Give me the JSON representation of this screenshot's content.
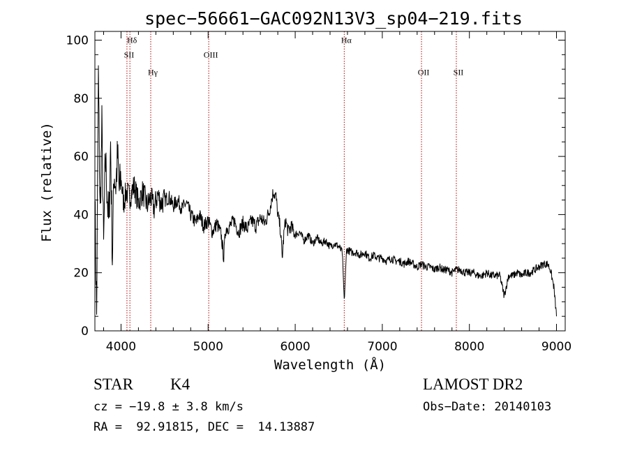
{
  "chart_data": {
    "type": "line",
    "title": "spec−56661−GAC092N13V3_sp04−219.fits",
    "xlabel": "Wavelength (Å)",
    "ylabel": "Flux (relative)",
    "xlim": [
      3700,
      9100
    ],
    "ylim": [
      0,
      103
    ],
    "xticks": [
      4000,
      5000,
      6000,
      7000,
      8000,
      9000
    ],
    "yticks": [
      0,
      20,
      40,
      60,
      80,
      100
    ],
    "series": [
      {
        "x": [
          3700,
          3720,
          3740,
          3760,
          3780,
          3800,
          3820,
          3840,
          3860,
          3880,
          3900,
          3920,
          3940,
          3960,
          3980,
          4000,
          4030,
          4060,
          4100,
          4150,
          4200,
          4250,
          4300,
          4340,
          4380,
          4420,
          4460,
          4500,
          4550,
          4600,
          4650,
          4700,
          4750,
          4800,
          4860,
          4900,
          4950,
          5000,
          5050,
          5100,
          5150,
          5180,
          5200,
          5250,
          5300,
          5350,
          5400,
          5450,
          5500,
          5550,
          5600,
          5650,
          5700,
          5750,
          5780,
          5800,
          5830,
          5850,
          5870,
          5890,
          5920,
          5950,
          6000,
          6050,
          6100,
          6150,
          6200,
          6250,
          6300,
          6350,
          6400,
          6450,
          6500,
          6540,
          6563,
          6590,
          6650,
          6700,
          6750,
          6800,
          6850,
          6900,
          6950,
          7000,
          7050,
          7100,
          7150,
          7200,
          7250,
          7300,
          7350,
          7400,
          7450,
          7500,
          7550,
          7600,
          7650,
          7700,
          7750,
          7800,
          7850,
          7900,
          7950,
          8000,
          8050,
          8100,
          8150,
          8200,
          8250,
          8300,
          8350,
          8400,
          8450,
          8500,
          8550,
          8600,
          8650,
          8700,
          8750,
          8800,
          8850,
          8900,
          8930,
          8950,
          8970,
          9000
        ],
        "y": [
          45,
          5,
          88,
          40,
          70,
          28,
          60,
          48,
          35,
          65,
          25,
          55,
          50,
          60,
          48,
          52,
          44,
          48,
          46,
          50,
          44,
          48,
          43,
          46,
          42,
          47,
          44,
          45,
          46,
          43,
          45,
          42,
          44,
          40,
          37,
          40,
          36,
          38,
          34,
          37,
          33,
          25,
          35,
          36,
          38,
          34,
          37,
          35,
          38,
          36,
          39,
          37,
          41,
          48,
          46,
          40,
          35,
          25,
          33,
          38,
          34,
          36,
          33,
          34,
          31,
          33,
          30,
          32,
          30,
          31,
          29,
          30,
          29,
          27,
          10,
          28,
          27,
          27,
          26,
          27,
          25,
          26,
          25,
          25,
          24,
          25,
          24,
          24,
          23,
          24,
          23,
          22,
          23,
          22,
          22,
          21,
          22,
          21,
          21,
          20,
          21,
          21,
          20,
          20,
          20,
          19,
          19,
          20,
          19,
          19,
          19,
          12,
          19,
          19,
          20,
          19,
          20,
          20,
          21,
          22,
          23,
          23,
          21,
          18,
          15,
          5
        ]
      }
    ],
    "lines": [
      {
        "x": 4068,
        "label": "SII",
        "label_y": 94
      },
      {
        "x": 4102,
        "label": "Hδ",
        "label_y": 99
      },
      {
        "x": 4341,
        "label": "Hγ",
        "label_y": 88
      },
      {
        "x": 5007,
        "label": "OIII",
        "label_y": 94
      },
      {
        "x": 6563,
        "label": "Hα",
        "label_y": 99
      },
      {
        "x": 7450,
        "label": "OII",
        "label_y": 88
      },
      {
        "x": 7850,
        "label": "SII",
        "label_y": 88
      }
    ],
    "grid": false,
    "legend": "none"
  },
  "info": {
    "object_class": "STAR",
    "subclass": "K4",
    "survey": "LAMOST DR2",
    "redshift_line": "cz = −19.8 ± 3.8 km/s",
    "obs_date_line": "Obs−Date: 20140103",
    "coords_line": "RA =  92.91815, DEC =  14.13887"
  }
}
